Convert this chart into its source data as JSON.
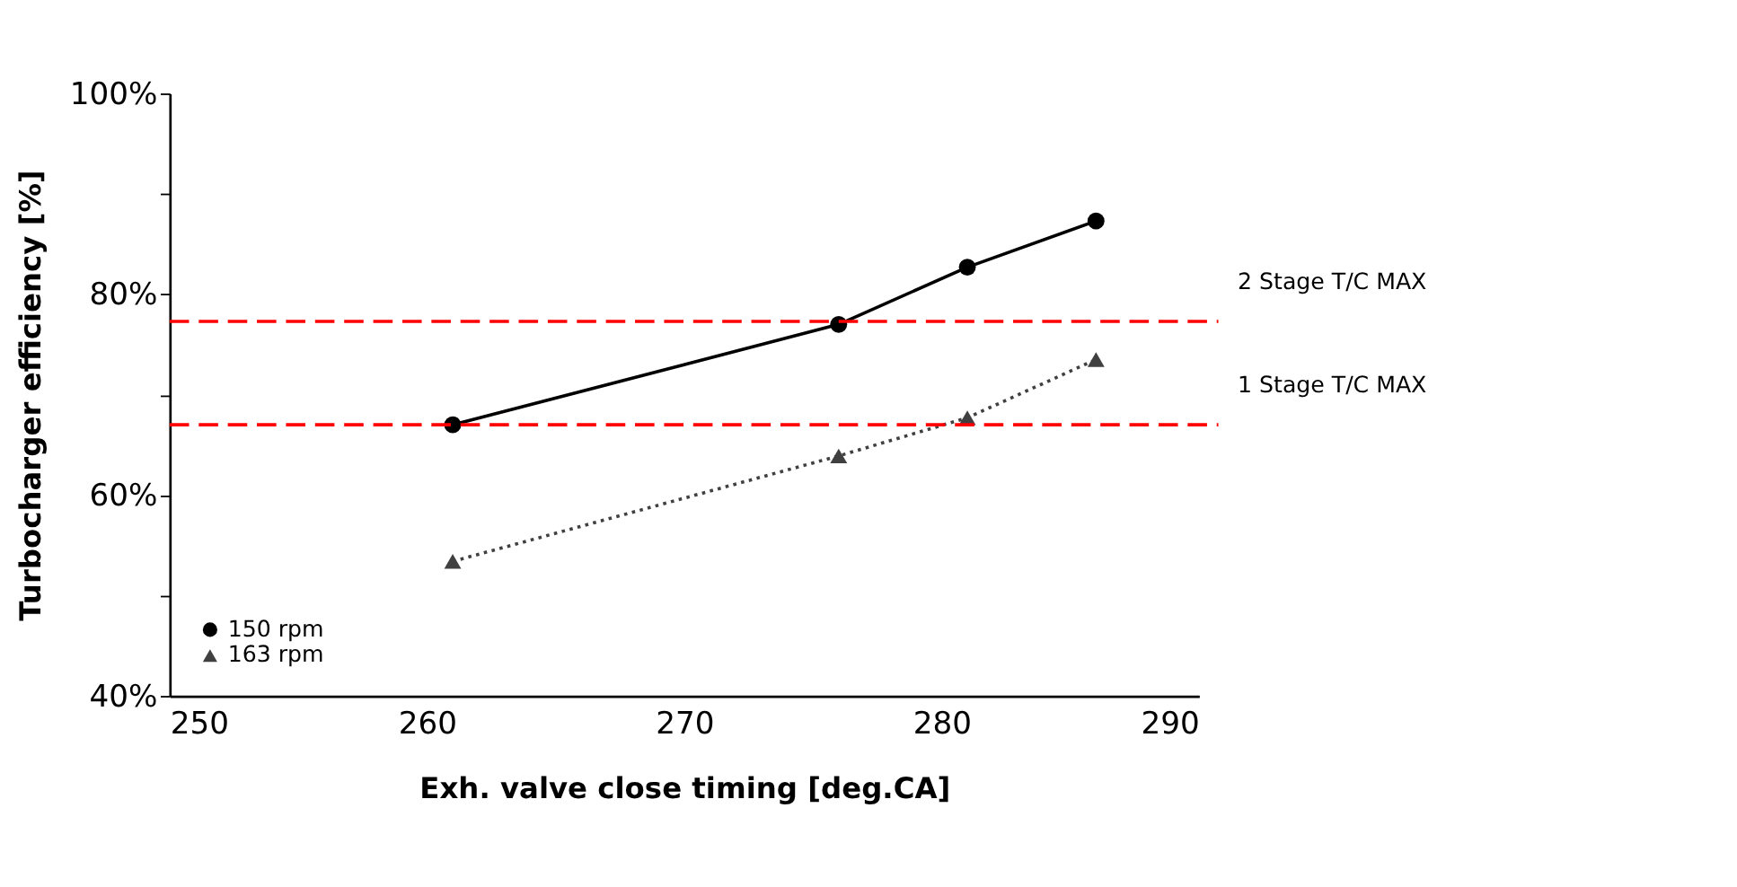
{
  "chart_data": {
    "type": "line",
    "xlabel": "Exh. valve close timing [deg.CA]",
    "ylabel": "Turbocharger efficiency [%]",
    "xlim": [
      250,
      290
    ],
    "xticks": [
      250,
      260,
      270,
      280,
      290
    ],
    "ylim": [
      40,
      100
    ],
    "yticks": [
      {
        "value": 40,
        "label": "40%"
      },
      {
        "value": 50,
        "label": null
      },
      {
        "value": 60,
        "label": "60%"
      },
      {
        "value": 70,
        "label": null
      },
      {
        "value": 80,
        "label": "80%"
      },
      {
        "value": 90,
        "label": null
      },
      {
        "value": 100,
        "label": "100%"
      }
    ],
    "series": [
      {
        "name": "150 rpm",
        "color": "#000000",
        "marker": "circle",
        "line_style": "solid",
        "x": [
          261,
          276,
          281,
          286
        ],
        "values": [
          67,
          77,
          82.7,
          87.3
        ]
      },
      {
        "name": "163 rpm",
        "color": "#404040",
        "marker": "triangle",
        "line_style": "dotted",
        "x": [
          261,
          276,
          281,
          286
        ],
        "values": [
          53.4,
          63.9,
          67.7,
          73.5
        ]
      }
    ],
    "ref_lines": [
      {
        "axis": "y",
        "value": 77.3,
        "label": "2 Stage  T/C MAX",
        "color": "#ff0000",
        "line_style": "dashed"
      },
      {
        "axis": "y",
        "value": 67,
        "label": "1 Stage  T/C MAX",
        "color": "#ff0000",
        "line_style": "dashed"
      }
    ],
    "grid": false,
    "legend": "bottom left"
  }
}
